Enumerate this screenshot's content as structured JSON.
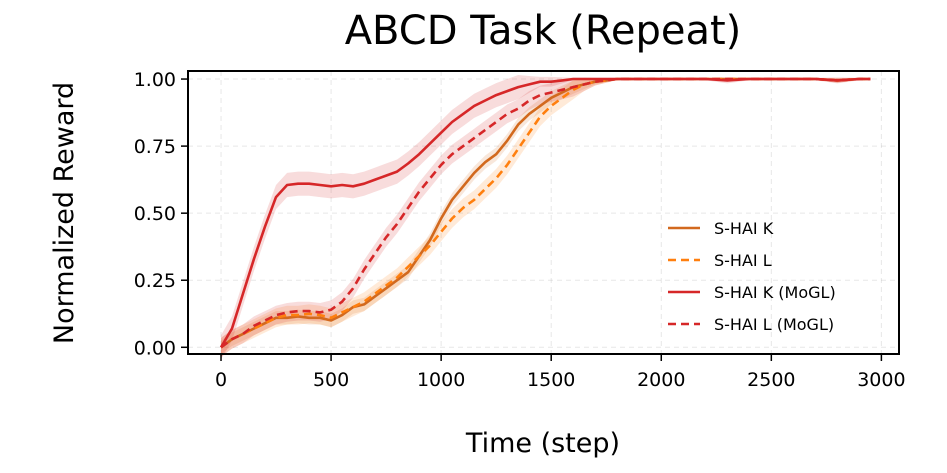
{
  "chart_data": {
    "type": "line",
    "title": "ABCD Task (Repeat)",
    "xlabel": "Time (step)",
    "ylabel": "Normalized Reward",
    "xlim": [
      -150,
      3080
    ],
    "ylim": [
      -0.025,
      1.03
    ],
    "xticks": [
      0,
      500,
      1000,
      1500,
      2000,
      2500,
      3000
    ],
    "yticks": [
      0.0,
      0.25,
      0.5,
      0.75,
      1.0
    ],
    "xtick_labels": [
      "0",
      "500",
      "1000",
      "1500",
      "2000",
      "2500",
      "3000"
    ],
    "ytick_labels": [
      "0.00",
      "0.25",
      "0.50",
      "0.75",
      "1.00"
    ],
    "grid": true,
    "legend_position": "center-right",
    "series": [
      {
        "name": "S-HAI K",
        "color": "#d2691e",
        "dash": "solid",
        "band": 0.025,
        "x": [
          0,
          50,
          100,
          150,
          200,
          250,
          300,
          350,
          400,
          450,
          500,
          550,
          600,
          650,
          700,
          750,
          800,
          850,
          900,
          950,
          1000,
          1050,
          1100,
          1150,
          1200,
          1250,
          1300,
          1350,
          1400,
          1450,
          1500,
          1550,
          1600,
          1650,
          1700,
          1750,
          1800,
          1850,
          1900,
          1950,
          2000,
          2100,
          2200,
          2300,
          2400,
          2500,
          2600,
          2700,
          2800,
          2900,
          2950
        ],
        "y": [
          0.0,
          0.03,
          0.05,
          0.07,
          0.09,
          0.11,
          0.11,
          0.115,
          0.11,
          0.11,
          0.1,
          0.12,
          0.15,
          0.16,
          0.19,
          0.22,
          0.25,
          0.28,
          0.34,
          0.4,
          0.48,
          0.55,
          0.6,
          0.65,
          0.69,
          0.72,
          0.77,
          0.83,
          0.87,
          0.9,
          0.93,
          0.95,
          0.97,
          0.98,
          0.99,
          0.995,
          1.0,
          1.0,
          1.0,
          1.0,
          1.0,
          1.0,
          1.0,
          1.0,
          1.0,
          1.0,
          1.0,
          1.0,
          0.995,
          1.0,
          1.0
        ]
      },
      {
        "name": "S-HAI L",
        "color": "#ff7f0e",
        "dash": "dashed",
        "band": 0.035,
        "x": [
          0,
          50,
          100,
          150,
          200,
          250,
          300,
          350,
          400,
          450,
          500,
          550,
          600,
          650,
          700,
          750,
          800,
          850,
          900,
          950,
          1000,
          1050,
          1100,
          1150,
          1200,
          1250,
          1300,
          1350,
          1400,
          1450,
          1500,
          1550,
          1600,
          1650,
          1700,
          1750,
          1800,
          1850,
          1900,
          1950,
          2000,
          2100,
          2200,
          2300,
          2400,
          2500,
          2600,
          2700,
          2800,
          2900,
          2950
        ],
        "y": [
          0.0,
          0.03,
          0.05,
          0.07,
          0.09,
          0.11,
          0.12,
          0.12,
          0.125,
          0.12,
          0.11,
          0.13,
          0.15,
          0.17,
          0.2,
          0.23,
          0.26,
          0.3,
          0.34,
          0.38,
          0.43,
          0.48,
          0.52,
          0.55,
          0.59,
          0.63,
          0.68,
          0.74,
          0.8,
          0.86,
          0.9,
          0.93,
          0.96,
          0.98,
          0.99,
          0.995,
          1.0,
          1.0,
          1.0,
          1.0,
          1.0,
          1.0,
          1.0,
          1.0,
          1.0,
          1.0,
          1.0,
          1.0,
          0.995,
          1.0,
          1.0
        ]
      },
      {
        "name": "S-HAI K (MoGL)",
        "color": "#d62728",
        "dash": "solid",
        "band": 0.045,
        "x": [
          0,
          50,
          100,
          150,
          200,
          250,
          300,
          350,
          400,
          450,
          500,
          550,
          600,
          650,
          700,
          750,
          800,
          850,
          900,
          950,
          1000,
          1050,
          1100,
          1150,
          1200,
          1250,
          1300,
          1350,
          1400,
          1450,
          1500,
          1550,
          1600,
          1650,
          1700,
          1750,
          1800,
          1850,
          1900,
          1950,
          2000,
          2100,
          2200,
          2300,
          2400,
          2500,
          2600,
          2700,
          2800,
          2900,
          2950
        ],
        "y": [
          0.0,
          0.07,
          0.2,
          0.33,
          0.45,
          0.56,
          0.605,
          0.61,
          0.61,
          0.605,
          0.6,
          0.605,
          0.6,
          0.61,
          0.625,
          0.64,
          0.655,
          0.685,
          0.72,
          0.76,
          0.8,
          0.84,
          0.87,
          0.9,
          0.92,
          0.94,
          0.955,
          0.97,
          0.98,
          0.99,
          0.99,
          0.995,
          1.0,
          1.0,
          1.0,
          1.0,
          1.0,
          1.0,
          1.0,
          1.0,
          1.0,
          1.0,
          1.0,
          0.995,
          1.0,
          1.0,
          1.0,
          1.0,
          0.995,
          1.0,
          1.0
        ]
      },
      {
        "name": "S-HAI L (MoGL)",
        "color": "#d62728",
        "dash": "dashed",
        "band": 0.035,
        "x": [
          0,
          50,
          100,
          150,
          200,
          250,
          300,
          350,
          400,
          450,
          500,
          550,
          600,
          650,
          700,
          750,
          800,
          850,
          900,
          950,
          1000,
          1050,
          1100,
          1150,
          1200,
          1250,
          1300,
          1350,
          1400,
          1450,
          1500,
          1550,
          1600,
          1650,
          1700,
          1750,
          1800,
          1850,
          1900,
          1950,
          2000,
          2100,
          2200,
          2300,
          2400,
          2500,
          2600,
          2700,
          2800,
          2900,
          2950
        ],
        "y": [
          0.0,
          0.03,
          0.05,
          0.08,
          0.1,
          0.12,
          0.13,
          0.135,
          0.135,
          0.13,
          0.14,
          0.17,
          0.22,
          0.29,
          0.35,
          0.41,
          0.46,
          0.52,
          0.58,
          0.63,
          0.68,
          0.72,
          0.75,
          0.78,
          0.81,
          0.84,
          0.87,
          0.89,
          0.92,
          0.94,
          0.95,
          0.96,
          0.97,
          0.98,
          0.99,
          0.995,
          1.0,
          1.0,
          1.0,
          1.0,
          1.0,
          1.0,
          1.0,
          1.0,
          1.0,
          1.0,
          1.0,
          1.0,
          0.995,
          1.0,
          1.0
        ]
      }
    ]
  }
}
